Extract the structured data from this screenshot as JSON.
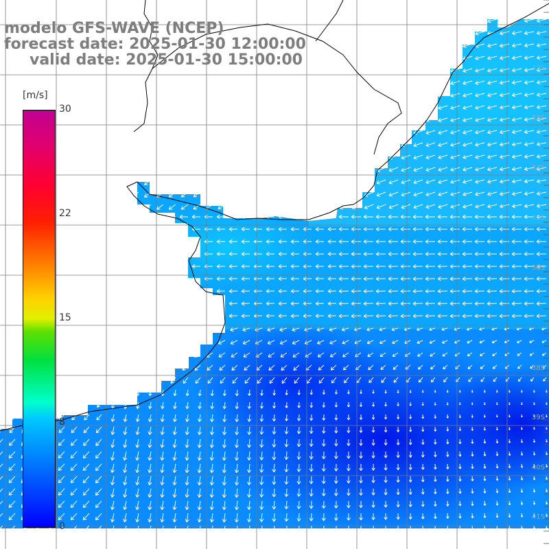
{
  "title": {
    "line1": "modelo GFS-WAVE (NCEP)",
    "line2": "forecast date: 2025-01-30 12:00:00",
    "line3": "valid date: 2025-01-30 15:00:00"
  },
  "colorbar": {
    "unit": "[m/s]",
    "ticks": [
      "30",
      "22",
      "15",
      "8",
      "0"
    ],
    "tick_values": [
      30,
      22,
      15,
      8,
      0
    ],
    "min": 0,
    "max": 30
  },
  "lat_labels": [
    "32S",
    "33S",
    "34S",
    "35S",
    "36S",
    "38S",
    "39S",
    "40S",
    "41S"
  ],
  "colors": {
    "land": "#ffffff",
    "coast": "#000000",
    "grid": "#808080",
    "arrows": "#ffffff",
    "title_text": "#7d7d7d"
  }
}
